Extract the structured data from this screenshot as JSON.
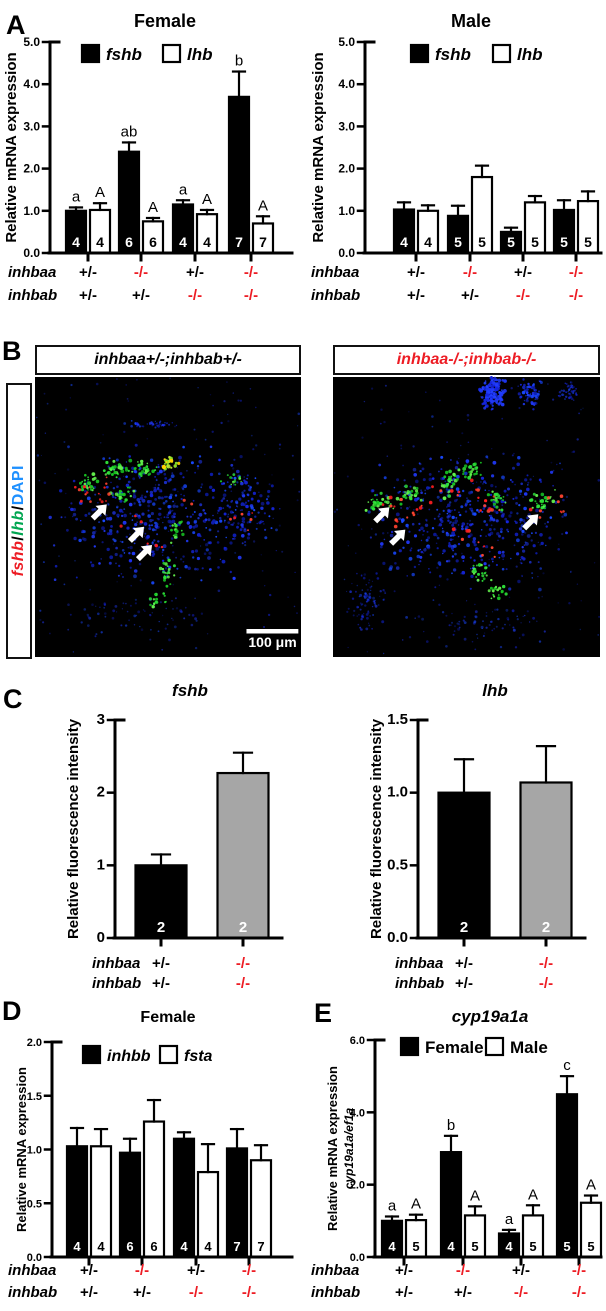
{
  "colors": {
    "knockout_red": "#ed1c24",
    "lhb_green": "#00a651",
    "dapi_blue": "#1e90ff",
    "gray_bar": "#a6a6a6",
    "black_bar": "#000000",
    "white_bar": "#ffffff"
  },
  "panels": {
    "A": {
      "label": "A"
    },
    "B": {
      "label": "B",
      "side_label": [
        {
          "text": "fshb",
          "color": "#ed1c24",
          "italic": true
        },
        {
          "text": "/",
          "color": "#000000",
          "italic": false
        },
        {
          "text": "lhb",
          "color": "#00a651",
          "italic": true
        },
        {
          "text": "/",
          "color": "#000000",
          "italic": false
        },
        {
          "text": "DAPI",
          "color": "#1e90ff",
          "italic": false
        }
      ],
      "images": [
        {
          "title": "inhbaa+/-;inhbab+/-",
          "title_color": "#000000",
          "scale_bar_label": "100 μm"
        },
        {
          "title": "inhbaa-/-;inhbab-/-",
          "title_color": "#ed1c24",
          "scale_bar_label": ""
        }
      ]
    },
    "C": {
      "label": "C"
    },
    "D": {
      "label": "D"
    },
    "E": {
      "label": "E"
    }
  },
  "chart_data": [
    {
      "id": "a_female",
      "type": "bar",
      "panel": "A",
      "title": "Female",
      "title_italic": false,
      "ylabel": "Relative mRNA expression",
      "ylim": [
        0,
        5
      ],
      "yticks": [
        {
          "v": 0,
          "label": "0.0"
        },
        {
          "v": 1,
          "label": "1.0"
        },
        {
          "v": 2,
          "label": "2.0"
        },
        {
          "v": 3,
          "label": "3.0"
        },
        {
          "v": 4,
          "label": "4.0"
        },
        {
          "v": 5,
          "label": "5.0"
        }
      ],
      "legend": [
        {
          "label": "fshb",
          "fill": "#000000"
        },
        {
          "label": "lhb",
          "fill": "#ffffff"
        }
      ],
      "legend_italic": true,
      "groups": [
        {
          "bars": [
            {
              "series": "fshb",
              "value": 1.0,
              "err": 0.08,
              "sig": "a",
              "n": 4,
              "fill": "#000000"
            },
            {
              "series": "lhb",
              "value": 1.02,
              "err": 0.16,
              "sig": "A",
              "n": 4,
              "fill": "#ffffff"
            }
          ]
        },
        {
          "bars": [
            {
              "series": "fshb",
              "value": 2.4,
              "err": 0.22,
              "sig": "ab",
              "n": 6,
              "fill": "#000000"
            },
            {
              "series": "lhb",
              "value": 0.75,
              "err": 0.08,
              "sig": "A",
              "n": 6,
              "fill": "#ffffff"
            }
          ]
        },
        {
          "bars": [
            {
              "series": "fshb",
              "value": 1.15,
              "err": 0.1,
              "sig": "a",
              "n": 4,
              "fill": "#000000"
            },
            {
              "series": "lhb",
              "value": 0.92,
              "err": 0.1,
              "sig": "A",
              "n": 4,
              "fill": "#ffffff"
            }
          ]
        },
        {
          "bars": [
            {
              "series": "fshb",
              "value": 3.7,
              "err": 0.6,
              "sig": "b",
              "n": 7,
              "fill": "#000000"
            },
            {
              "series": "lhb",
              "value": 0.7,
              "err": 0.17,
              "sig": "A",
              "n": 7,
              "fill": "#ffffff"
            }
          ]
        }
      ],
      "genotypes": [
        {
          "gene": "inhbaa",
          "values": [
            "+/-",
            "-/-",
            "+/-",
            "-/-"
          ]
        },
        {
          "gene": "inhbab",
          "values": [
            "+/-",
            "+/-",
            "-/-",
            "-/-"
          ]
        }
      ]
    },
    {
      "id": "a_male",
      "type": "bar",
      "panel": "A",
      "title": "Male",
      "title_italic": false,
      "ylabel": "Relative mRNA expression",
      "ylim": [
        0,
        5
      ],
      "yticks": [
        {
          "v": 0,
          "label": "0.0"
        },
        {
          "v": 1,
          "label": "1.0"
        },
        {
          "v": 2,
          "label": "2.0"
        },
        {
          "v": 3,
          "label": "3.0"
        },
        {
          "v": 4,
          "label": "4.0"
        },
        {
          "v": 5,
          "label": "5.0"
        }
      ],
      "legend": [
        {
          "label": "fshb",
          "fill": "#000000"
        },
        {
          "label": "lhb",
          "fill": "#ffffff"
        }
      ],
      "legend_italic": true,
      "groups": [
        {
          "bars": [
            {
              "series": "fshb",
              "value": 1.03,
              "err": 0.17,
              "n": 4,
              "fill": "#000000"
            },
            {
              "series": "lhb",
              "value": 1.0,
              "err": 0.13,
              "n": 4,
              "fill": "#ffffff"
            }
          ]
        },
        {
          "bars": [
            {
              "series": "fshb",
              "value": 0.88,
              "err": 0.24,
              "n": 5,
              "fill": "#000000"
            },
            {
              "series": "lhb",
              "value": 1.8,
              "err": 0.27,
              "n": 5,
              "fill": "#ffffff"
            }
          ]
        },
        {
          "bars": [
            {
              "series": "fshb",
              "value": 0.5,
              "err": 0.1,
              "n": 5,
              "fill": "#000000"
            },
            {
              "series": "lhb",
              "value": 1.2,
              "err": 0.15,
              "n": 5,
              "fill": "#ffffff"
            }
          ]
        },
        {
          "bars": [
            {
              "series": "fshb",
              "value": 1.02,
              "err": 0.23,
              "n": 5,
              "fill": "#000000"
            },
            {
              "series": "lhb",
              "value": 1.23,
              "err": 0.23,
              "n": 5,
              "fill": "#ffffff"
            }
          ]
        }
      ],
      "genotypes": [
        {
          "gene": "inhbaa",
          "values": [
            "+/-",
            "-/-",
            "+/-",
            "-/-"
          ]
        },
        {
          "gene": "inhbab",
          "values": [
            "+/-",
            "+/-",
            "-/-",
            "-/-"
          ]
        }
      ]
    },
    {
      "id": "c_fshb",
      "type": "bar",
      "panel": "C",
      "title": "fshb",
      "title_italic": true,
      "ylabel": "Relative fluorescence intensity",
      "ylim": [
        0,
        3
      ],
      "yticks": [
        {
          "v": 0,
          "label": "0"
        },
        {
          "v": 1,
          "label": "1"
        },
        {
          "v": 2,
          "label": "2"
        },
        {
          "v": 3,
          "label": "3"
        }
      ],
      "groups": [
        {
          "bars": [
            {
              "series": "inhbaa+/-;inhbab+/-",
              "value": 1.0,
              "err": 0.15,
              "n": 2,
              "fill": "#000000"
            }
          ]
        },
        {
          "bars": [
            {
              "series": "inhbaa-/-;inhbab-/-",
              "value": 2.27,
              "err": 0.28,
              "n": 2,
              "fill": "#a6a6a6"
            }
          ]
        }
      ],
      "genotypes": [
        {
          "gene": "inhbaa",
          "values": [
            "+/-",
            "-/-"
          ]
        },
        {
          "gene": "inhbab",
          "values": [
            "+/-",
            "-/-"
          ]
        }
      ]
    },
    {
      "id": "c_lhb",
      "type": "bar",
      "panel": "C",
      "title": "lhb",
      "title_italic": true,
      "ylabel": "Relative fluorescence intensity",
      "ylim": [
        0,
        1.5
      ],
      "yticks": [
        {
          "v": 0,
          "label": "0.0"
        },
        {
          "v": 0.5,
          "label": "0.5"
        },
        {
          "v": 1,
          "label": "1.0"
        },
        {
          "v": 1.5,
          "label": "1.5"
        }
      ],
      "groups": [
        {
          "bars": [
            {
              "series": "inhbaa+/-;inhbab+/-",
              "value": 1.0,
              "err": 0.23,
              "n": 2,
              "fill": "#000000"
            }
          ]
        },
        {
          "bars": [
            {
              "series": "inhbaa-/-;inhbab-/-",
              "value": 1.07,
              "err": 0.25,
              "n": 2,
              "fill": "#a6a6a6"
            }
          ]
        }
      ],
      "genotypes": [
        {
          "gene": "inhbaa",
          "values": [
            "+/-",
            "-/-"
          ]
        },
        {
          "gene": "inhbab",
          "values": [
            "+/-",
            "-/-"
          ]
        }
      ]
    },
    {
      "id": "d_female",
      "type": "bar",
      "panel": "D",
      "title": "Female",
      "title_italic": false,
      "ylabel": "Relative mRNA expression",
      "ylim": [
        0,
        2
      ],
      "yticks": [
        {
          "v": 0,
          "label": "0.0"
        },
        {
          "v": 0.5,
          "label": "0.5"
        },
        {
          "v": 1,
          "label": "1.0"
        },
        {
          "v": 1.5,
          "label": "1.5"
        },
        {
          "v": 2,
          "label": "2.0"
        }
      ],
      "legend": [
        {
          "label": "inhbb",
          "fill": "#000000"
        },
        {
          "label": "fsta",
          "fill": "#ffffff"
        }
      ],
      "legend_italic": true,
      "groups": [
        {
          "bars": [
            {
              "series": "inhbb",
              "value": 1.03,
              "err": 0.17,
              "n": 4,
              "fill": "#000000"
            },
            {
              "series": "fsta",
              "value": 1.03,
              "err": 0.16,
              "n": 4,
              "fill": "#ffffff"
            }
          ]
        },
        {
          "bars": [
            {
              "series": "inhbb",
              "value": 0.97,
              "err": 0.13,
              "n": 6,
              "fill": "#000000"
            },
            {
              "series": "fsta",
              "value": 1.26,
              "err": 0.2,
              "n": 6,
              "fill": "#ffffff"
            }
          ]
        },
        {
          "bars": [
            {
              "series": "inhbb",
              "value": 1.1,
              "err": 0.06,
              "n": 4,
              "fill": "#000000"
            },
            {
              "series": "fsta",
              "value": 0.79,
              "err": 0.26,
              "n": 4,
              "fill": "#ffffff"
            }
          ]
        },
        {
          "bars": [
            {
              "series": "inhbb",
              "value": 1.01,
              "err": 0.18,
              "n": 7,
              "fill": "#000000"
            },
            {
              "series": "fsta",
              "value": 0.9,
              "err": 0.14,
              "n": 7,
              "fill": "#ffffff"
            }
          ]
        }
      ],
      "genotypes": [
        {
          "gene": "inhbaa",
          "values": [
            "+/-",
            "-/-",
            "+/-",
            "-/-"
          ]
        },
        {
          "gene": "inhbab",
          "values": [
            "+/-",
            "+/-",
            "-/-",
            "-/-"
          ]
        }
      ]
    },
    {
      "id": "e_cyp19a1a",
      "type": "bar",
      "panel": "E",
      "title": "cyp19a1a",
      "title_italic": true,
      "ylabel": "Relative mRNA expression",
      "ylabel2": "cyp19a1a/ef1a",
      "ylim": [
        0,
        6
      ],
      "yticks": [
        {
          "v": 0,
          "label": "0.0"
        },
        {
          "v": 2,
          "label": "2.0"
        },
        {
          "v": 4,
          "label": "4.0"
        },
        {
          "v": 6,
          "label": "6.0"
        }
      ],
      "legend": [
        {
          "label": "Female",
          "fill": "#000000"
        },
        {
          "label": "Male",
          "fill": "#ffffff"
        }
      ],
      "legend_italic": false,
      "groups": [
        {
          "bars": [
            {
              "series": "Female",
              "value": 1.0,
              "err": 0.12,
              "sig": "a",
              "n": 4,
              "fill": "#000000"
            },
            {
              "series": "Male",
              "value": 1.02,
              "err": 0.15,
              "sig": "A",
              "n": 5,
              "fill": "#ffffff"
            }
          ]
        },
        {
          "bars": [
            {
              "series": "Female",
              "value": 2.9,
              "err": 0.45,
              "sig": "b",
              "n": 4,
              "fill": "#000000"
            },
            {
              "series": "Male",
              "value": 1.15,
              "err": 0.25,
              "sig": "A",
              "n": 5,
              "fill": "#ffffff"
            }
          ]
        },
        {
          "bars": [
            {
              "series": "Female",
              "value": 0.65,
              "err": 0.1,
              "sig": "a",
              "n": 4,
              "fill": "#000000"
            },
            {
              "series": "Male",
              "value": 1.15,
              "err": 0.28,
              "sig": "A",
              "n": 5,
              "fill": "#ffffff"
            }
          ]
        },
        {
          "bars": [
            {
              "series": "Female",
              "value": 4.5,
              "err": 0.5,
              "sig": "c",
              "n": 5,
              "fill": "#000000"
            },
            {
              "series": "Male",
              "value": 1.5,
              "err": 0.2,
              "sig": "A",
              "n": 5,
              "fill": "#ffffff"
            }
          ]
        }
      ],
      "genotypes": [
        {
          "gene": "inhbaa",
          "values": [
            "+/-",
            "-/-",
            "+/-",
            "-/-"
          ]
        },
        {
          "gene": "inhbab",
          "values": [
            "+/-",
            "+/-",
            "-/-",
            "-/-"
          ]
        }
      ]
    }
  ]
}
